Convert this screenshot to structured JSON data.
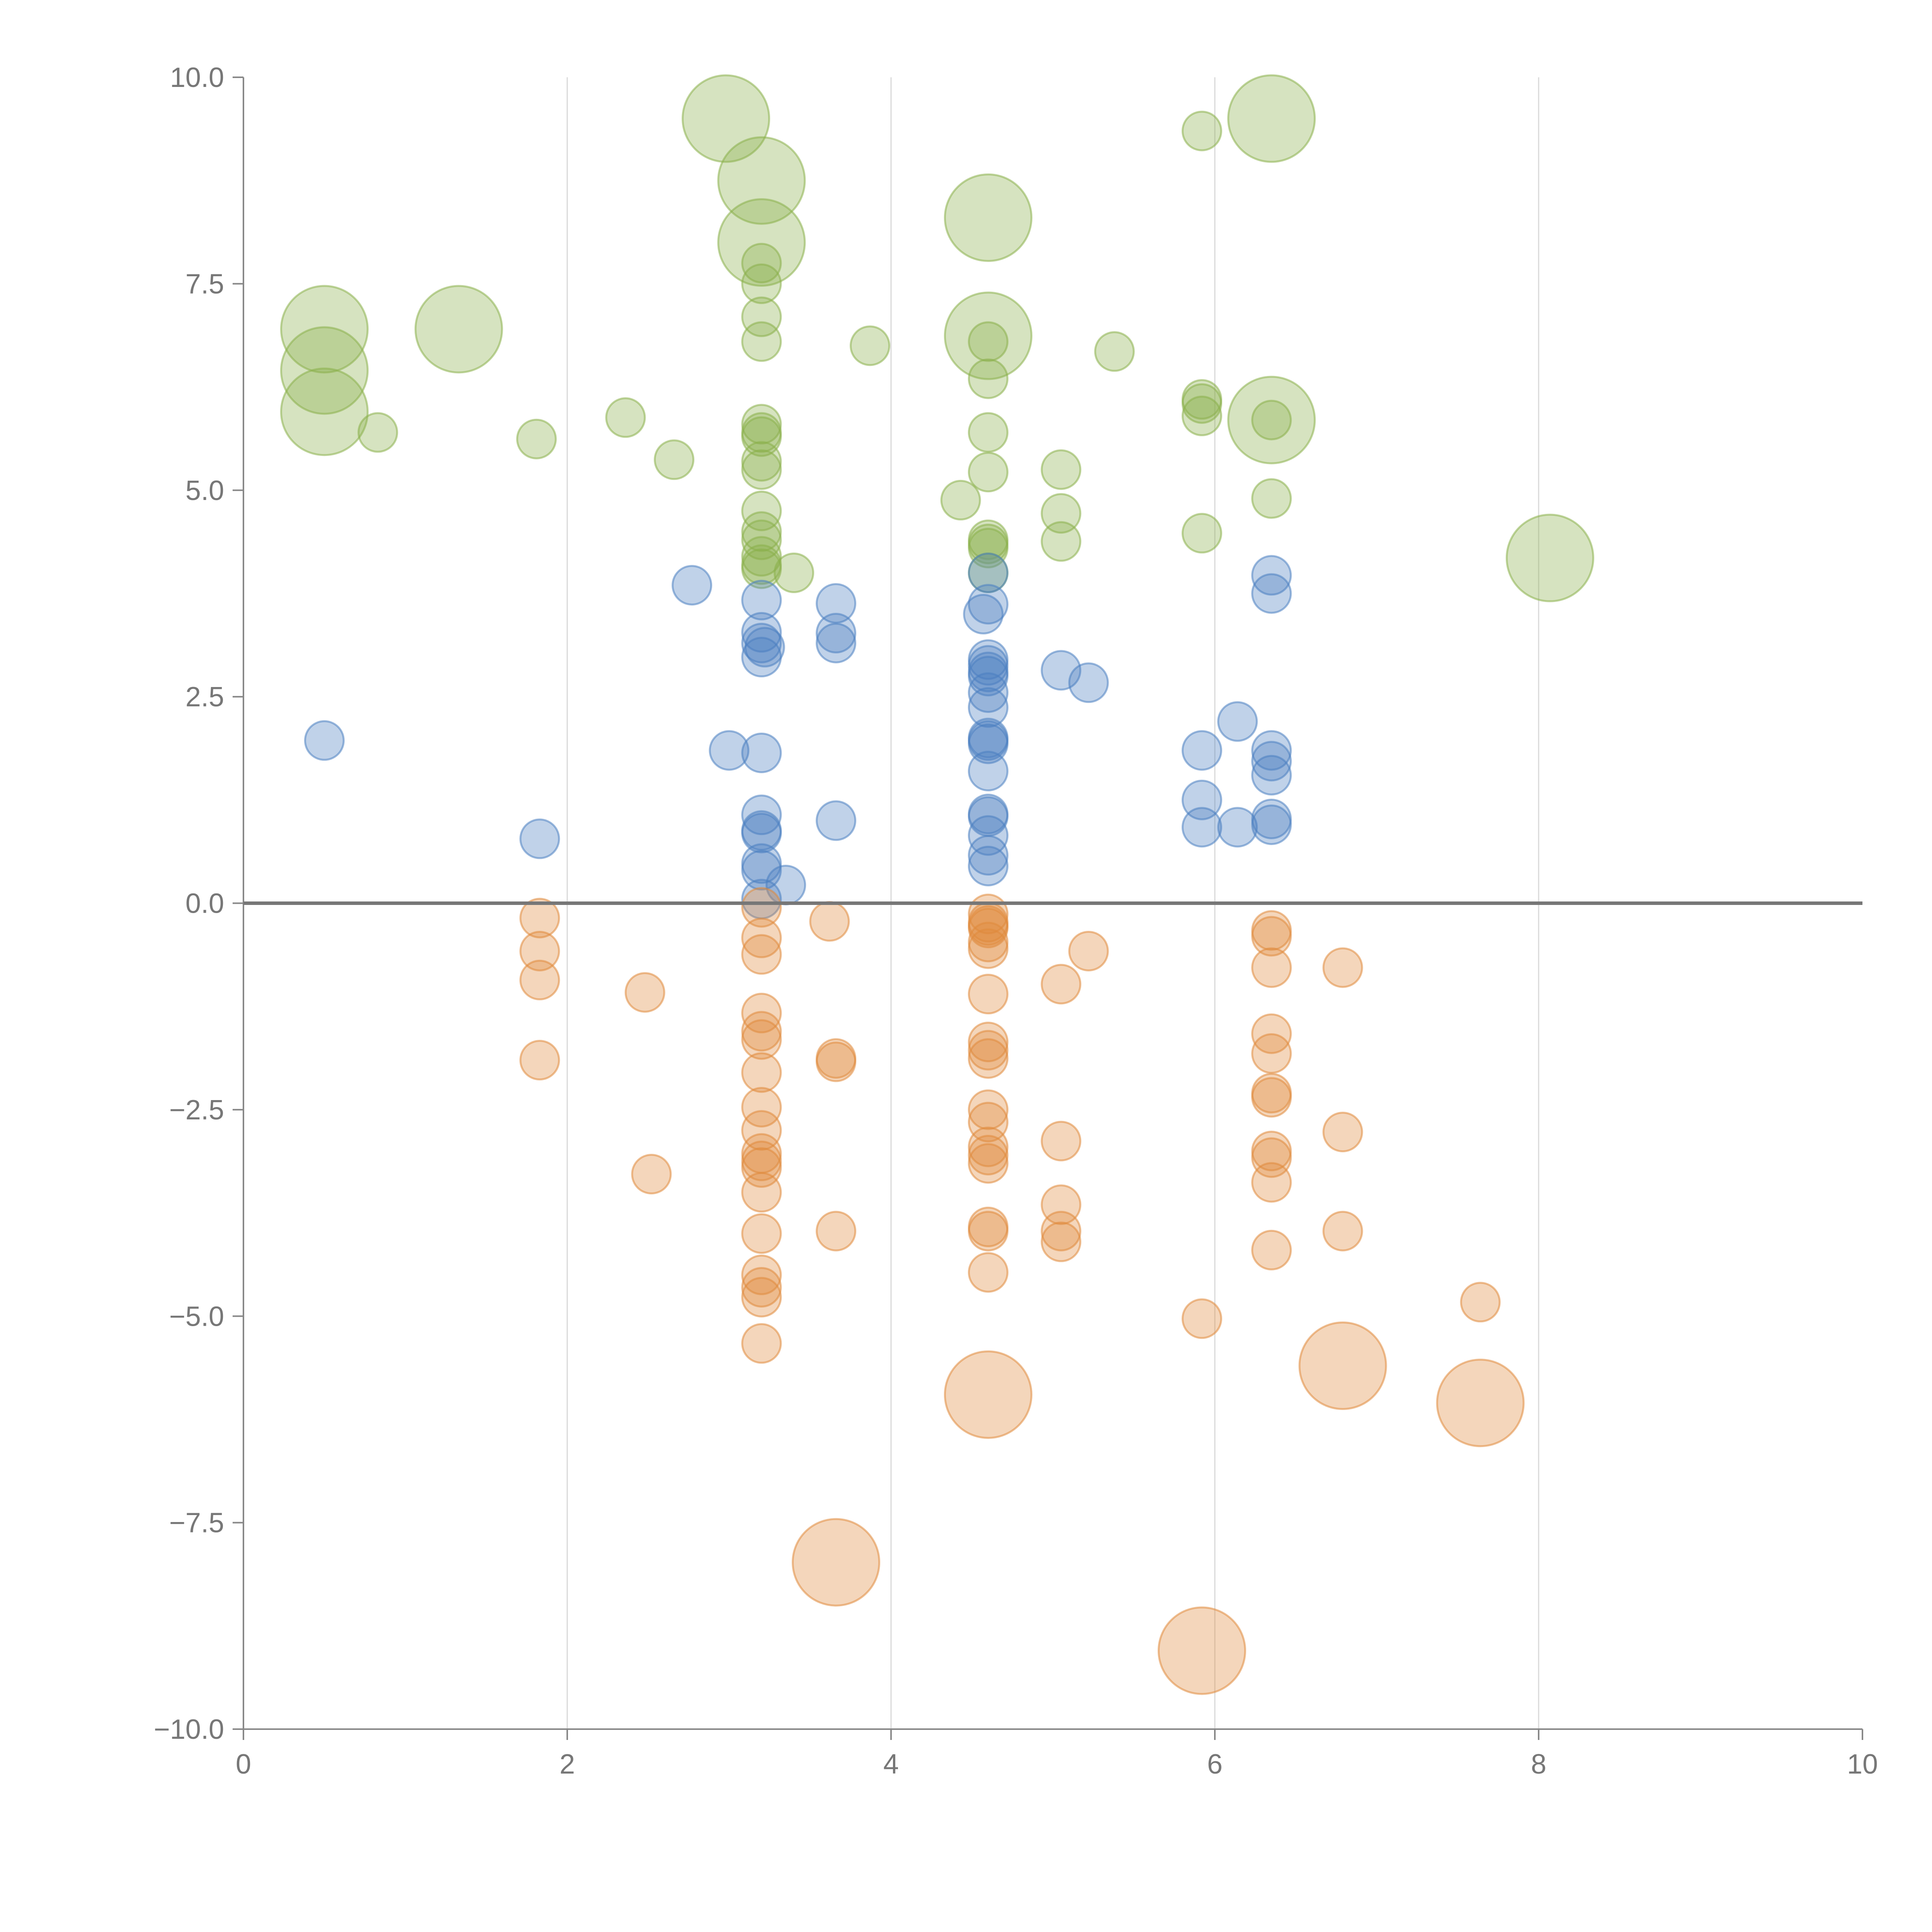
{
  "chart_data": {
    "type": "scatter",
    "title": "",
    "xlabel": "",
    "ylabel": "",
    "xlim": [
      0,
      10
    ],
    "ylim": [
      -10,
      10
    ],
    "x_ticks": [
      0,
      2,
      4,
      6,
      8,
      10
    ],
    "x_tick_labels": [
      "0",
      "2",
      "4",
      "6",
      "8",
      "10"
    ],
    "y_ticks": [
      10,
      7.5,
      5,
      2.5,
      0,
      -2.5,
      -5,
      -7.5,
      -10
    ],
    "y_tick_labels": [
      "10.0",
      "7.5",
      "5.0",
      "2.5",
      "0.0",
      "−2.5",
      "−5.0",
      "−7.5",
      "−10.0"
    ],
    "x_grid": true,
    "y_grid": false,
    "zero_line": true,
    "colors": {
      "green": "#8ab04a",
      "blue": "#4a7fc1",
      "orange": "#e08a3c"
    },
    "series": [
      {
        "name": "green",
        "color": "#8ab04a",
        "points": [
          [
            2.98,
            9.5,
            "L"
          ],
          [
            3.2,
            8.75,
            "L"
          ],
          [
            3.2,
            8.0,
            "L"
          ],
          [
            4.6,
            8.3,
            "L"
          ],
          [
            6.35,
            9.5,
            "L"
          ],
          [
            5.92,
            9.35,
            "S"
          ],
          [
            0.5,
            6.95,
            "L"
          ],
          [
            0.5,
            6.45,
            "L"
          ],
          [
            0.5,
            5.95,
            "L"
          ],
          [
            1.33,
            6.95,
            "L"
          ],
          [
            4.6,
            6.87,
            "L"
          ],
          [
            6.35,
            5.85,
            "L"
          ],
          [
            8.07,
            4.18,
            "L"
          ],
          [
            3.2,
            7.75,
            "S"
          ],
          [
            3.2,
            7.5,
            "S"
          ],
          [
            3.2,
            7.1,
            "S"
          ],
          [
            3.2,
            6.8,
            "S"
          ],
          [
            3.87,
            6.75,
            "S"
          ],
          [
            5.38,
            6.68,
            "S"
          ],
          [
            4.6,
            6.8,
            "S"
          ],
          [
            4.6,
            6.35,
            "S"
          ],
          [
            4.6,
            5.7,
            "S"
          ],
          [
            4.6,
            5.22,
            "S"
          ],
          [
            0.83,
            5.7,
            "S"
          ],
          [
            1.81,
            5.62,
            "S"
          ],
          [
            2.36,
            5.88,
            "S"
          ],
          [
            2.66,
            5.37,
            "S"
          ],
          [
            3.2,
            5.8,
            "S"
          ],
          [
            3.2,
            5.7,
            "S"
          ],
          [
            3.2,
            5.65,
            "S"
          ],
          [
            3.2,
            5.35,
            "S"
          ],
          [
            3.2,
            5.25,
            "S"
          ],
          [
            3.2,
            4.75,
            "S"
          ],
          [
            3.2,
            4.5,
            "S"
          ],
          [
            3.2,
            4.4,
            "S"
          ],
          [
            3.2,
            4.2,
            "S"
          ],
          [
            3.2,
            4.1,
            "S"
          ],
          [
            3.2,
            4.05,
            "S"
          ],
          [
            3.4,
            4.0,
            "S"
          ],
          [
            4.43,
            4.88,
            "S"
          ],
          [
            4.6,
            4.4,
            "S"
          ],
          [
            4.6,
            4.35,
            "S"
          ],
          [
            4.6,
            4.3,
            "S"
          ],
          [
            4.6,
            4.0,
            "S"
          ],
          [
            5.05,
            5.25,
            "S"
          ],
          [
            5.05,
            4.72,
            "S"
          ],
          [
            5.05,
            4.38,
            "S"
          ],
          [
            5.92,
            6.1,
            "S"
          ],
          [
            5.92,
            6.05,
            "S"
          ],
          [
            5.92,
            5.9,
            "S"
          ],
          [
            5.92,
            4.48,
            "S"
          ],
          [
            6.35,
            5.85,
            "S"
          ],
          [
            6.35,
            4.9,
            "S"
          ]
        ]
      },
      {
        "name": "blue",
        "color": "#4a7fc1",
        "points": [
          [
            0.5,
            1.97,
            "S"
          ],
          [
            1.83,
            0.78,
            "S"
          ],
          [
            2.77,
            3.85,
            "S"
          ],
          [
            3.0,
            1.85,
            "S"
          ],
          [
            3.2,
            3.67,
            "S"
          ],
          [
            3.2,
            3.28,
            "S"
          ],
          [
            3.2,
            3.15,
            "S"
          ],
          [
            3.2,
            2.98,
            "S"
          ],
          [
            3.22,
            3.1,
            "S"
          ],
          [
            3.2,
            1.82,
            "S"
          ],
          [
            3.2,
            1.07,
            "S"
          ],
          [
            3.2,
            0.88,
            "S"
          ],
          [
            3.2,
            0.85,
            "S"
          ],
          [
            3.2,
            0.48,
            "S"
          ],
          [
            3.2,
            0.4,
            "S"
          ],
          [
            3.35,
            0.22,
            "S"
          ],
          [
            3.2,
            0.05,
            "S"
          ],
          [
            3.66,
            3.63,
            "S"
          ],
          [
            3.66,
            3.27,
            "S"
          ],
          [
            3.66,
            3.15,
            "S"
          ],
          [
            3.66,
            1.0,
            "S"
          ],
          [
            4.6,
            4.0,
            "S"
          ],
          [
            4.6,
            3.62,
            "S"
          ],
          [
            4.57,
            3.5,
            "S"
          ],
          [
            4.6,
            2.95,
            "S"
          ],
          [
            4.6,
            2.88,
            "S"
          ],
          [
            4.6,
            2.8,
            "S"
          ],
          [
            4.6,
            2.75,
            "S"
          ],
          [
            4.6,
            2.55,
            "S"
          ],
          [
            4.6,
            2.37,
            "S"
          ],
          [
            4.6,
            2.0,
            "S"
          ],
          [
            4.6,
            1.97,
            "S"
          ],
          [
            4.6,
            1.93,
            "S"
          ],
          [
            4.6,
            1.6,
            "S"
          ],
          [
            4.6,
            1.08,
            "S"
          ],
          [
            4.6,
            1.05,
            "S"
          ],
          [
            4.6,
            0.82,
            "S"
          ],
          [
            4.6,
            0.58,
            "S"
          ],
          [
            4.6,
            0.45,
            "S"
          ],
          [
            5.05,
            2.82,
            "S"
          ],
          [
            5.22,
            2.67,
            "S"
          ],
          [
            5.92,
            1.85,
            "S"
          ],
          [
            5.92,
            1.25,
            "S"
          ],
          [
            5.92,
            0.92,
            "S"
          ],
          [
            6.14,
            2.2,
            "S"
          ],
          [
            6.14,
            0.92,
            "S"
          ],
          [
            6.35,
            3.97,
            "S"
          ],
          [
            6.35,
            3.75,
            "S"
          ],
          [
            6.35,
            1.85,
            "S"
          ],
          [
            6.35,
            1.72,
            "S"
          ],
          [
            6.35,
            1.55,
            "S"
          ],
          [
            6.35,
            1.02,
            "S"
          ],
          [
            6.35,
            0.95,
            "S"
          ]
        ]
      },
      {
        "name": "orange",
        "color": "#e08a3c",
        "points": [
          [
            4.6,
            -5.95,
            "L"
          ],
          [
            6.79,
            -5.6,
            "L"
          ],
          [
            7.64,
            -6.05,
            "L"
          ],
          [
            3.66,
            -7.98,
            "L"
          ],
          [
            5.92,
            -9.05,
            "L"
          ],
          [
            1.83,
            -0.18,
            "S"
          ],
          [
            1.83,
            -0.58,
            "S"
          ],
          [
            1.83,
            -0.93,
            "S"
          ],
          [
            1.83,
            -1.9,
            "S"
          ],
          [
            2.48,
            -1.08,
            "S"
          ],
          [
            2.52,
            -3.28,
            "S"
          ],
          [
            3.2,
            -0.05,
            "S"
          ],
          [
            3.2,
            -0.42,
            "S"
          ],
          [
            3.2,
            -0.62,
            "S"
          ],
          [
            3.2,
            -1.33,
            "S"
          ],
          [
            3.2,
            -1.55,
            "S"
          ],
          [
            3.2,
            -1.65,
            "S"
          ],
          [
            3.2,
            -2.05,
            "S"
          ],
          [
            3.2,
            -2.47,
            "S"
          ],
          [
            3.2,
            -2.75,
            "S"
          ],
          [
            3.2,
            -3.03,
            "S"
          ],
          [
            3.2,
            -3.12,
            "S"
          ],
          [
            3.2,
            -3.2,
            "S"
          ],
          [
            3.2,
            -3.5,
            "S"
          ],
          [
            3.2,
            -4.0,
            "S"
          ],
          [
            3.2,
            -4.5,
            "S"
          ],
          [
            3.2,
            -4.65,
            "S"
          ],
          [
            3.2,
            -4.77,
            "S"
          ],
          [
            3.2,
            -5.33,
            "S"
          ],
          [
            3.62,
            -0.22,
            "S"
          ],
          [
            3.66,
            -1.88,
            "S"
          ],
          [
            3.66,
            -1.92,
            "S"
          ],
          [
            3.66,
            -3.97,
            "S"
          ],
          [
            4.6,
            -0.13,
            "S"
          ],
          [
            4.6,
            -0.23,
            "S"
          ],
          [
            4.6,
            -0.27,
            "S"
          ],
          [
            4.6,
            -0.3,
            "S"
          ],
          [
            4.6,
            -0.47,
            "S"
          ],
          [
            4.6,
            -0.55,
            "S"
          ],
          [
            4.6,
            -1.1,
            "S"
          ],
          [
            4.6,
            -1.68,
            "S"
          ],
          [
            4.6,
            -1.78,
            "S"
          ],
          [
            4.6,
            -1.88,
            "S"
          ],
          [
            4.6,
            -2.5,
            "S"
          ],
          [
            4.6,
            -2.65,
            "S"
          ],
          [
            4.6,
            -2.95,
            "S"
          ],
          [
            4.6,
            -3.05,
            "S"
          ],
          [
            4.6,
            -3.15,
            "S"
          ],
          [
            4.6,
            -3.92,
            "S"
          ],
          [
            4.6,
            -3.97,
            "S"
          ],
          [
            4.6,
            -4.47,
            "S"
          ],
          [
            5.05,
            -0.98,
            "S"
          ],
          [
            5.05,
            -2.88,
            "S"
          ],
          [
            5.05,
            -3.65,
            "S"
          ],
          [
            5.05,
            -3.97,
            "S"
          ],
          [
            5.05,
            -4.1,
            "S"
          ],
          [
            5.22,
            -0.58,
            "S"
          ],
          [
            5.92,
            -5.03,
            "S"
          ],
          [
            6.35,
            -0.33,
            "S"
          ],
          [
            6.35,
            -0.4,
            "S"
          ],
          [
            6.35,
            -0.78,
            "S"
          ],
          [
            6.35,
            -1.58,
            "S"
          ],
          [
            6.35,
            -1.82,
            "S"
          ],
          [
            6.35,
            -2.3,
            "S"
          ],
          [
            6.35,
            -2.35,
            "S"
          ],
          [
            6.35,
            -3.0,
            "S"
          ],
          [
            6.35,
            -3.08,
            "S"
          ],
          [
            6.35,
            -3.38,
            "S"
          ],
          [
            6.35,
            -4.2,
            "S"
          ],
          [
            6.79,
            -0.78,
            "S"
          ],
          [
            6.79,
            -2.77,
            "S"
          ],
          [
            6.79,
            -3.97,
            "S"
          ],
          [
            7.64,
            -4.83,
            "S"
          ]
        ]
      }
    ]
  }
}
